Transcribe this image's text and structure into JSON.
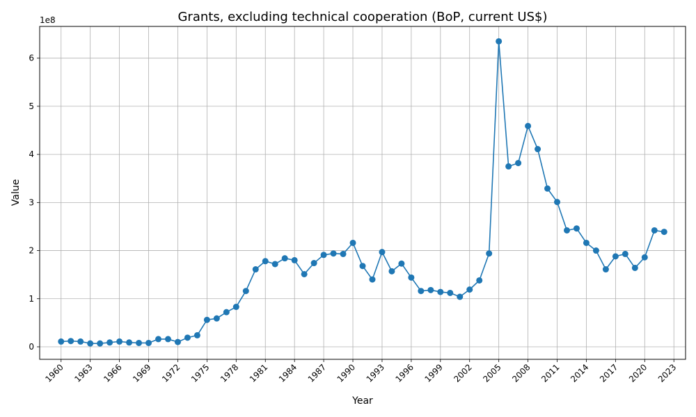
{
  "chart_data": {
    "type": "line",
    "title": "Grants, excluding technical cooperation (BoP, current US$)",
    "xlabel": "Year",
    "ylabel": "Value",
    "y_scale_label": "1e8",
    "x_ticks": [
      1960,
      1963,
      1966,
      1969,
      1972,
      1975,
      1978,
      1981,
      1984,
      1987,
      1990,
      1993,
      1996,
      1999,
      2002,
      2005,
      2008,
      2011,
      2014,
      2017,
      2020,
      2023
    ],
    "y_ticks": [
      0,
      1,
      2,
      3,
      4,
      5,
      6
    ],
    "xlim": [
      1957.8,
      2024.2
    ],
    "ylim": [
      -0.26,
      6.66
    ],
    "grid": true,
    "color": "#1f77b4",
    "series": [
      {
        "x": [
          1960,
          1961,
          1962,
          1963,
          1964,
          1965,
          1966,
          1967,
          1968,
          1969,
          1970,
          1971,
          1972,
          1973,
          1974,
          1975,
          1976,
          1977,
          1978,
          1979,
          1980,
          1981,
          1982,
          1983,
          1984,
          1985,
          1986,
          1987,
          1988,
          1989,
          1990,
          1991,
          1992,
          1993,
          1994,
          1995,
          1996,
          1997,
          1998,
          1999,
          2000,
          2001,
          2002,
          2003,
          2004,
          2005,
          2006,
          2007,
          2008,
          2009,
          2010,
          2011,
          2012,
          2013,
          2014,
          2015,
          2016,
          2017,
          2018,
          2019,
          2020,
          2021,
          2022
        ],
        "values": [
          0.11,
          0.12,
          0.11,
          0.07,
          0.07,
          0.09,
          0.11,
          0.09,
          0.08,
          0.08,
          0.16,
          0.16,
          0.1,
          0.19,
          0.24,
          0.56,
          0.59,
          0.72,
          0.83,
          1.16,
          1.61,
          1.78,
          1.72,
          1.84,
          1.8,
          1.51,
          1.74,
          1.91,
          1.94,
          1.93,
          2.16,
          1.68,
          1.4,
          1.97,
          1.57,
          1.73,
          1.44,
          1.16,
          1.18,
          1.14,
          1.12,
          1.04,
          1.19,
          1.38,
          1.94,
          6.35,
          3.75,
          3.82,
          4.59,
          4.11,
          3.29,
          3.01,
          2.42,
          2.46,
          2.16,
          2.0,
          1.61,
          1.88,
          1.93,
          1.64,
          1.86,
          2.42,
          2.39
        ]
      }
    ]
  }
}
